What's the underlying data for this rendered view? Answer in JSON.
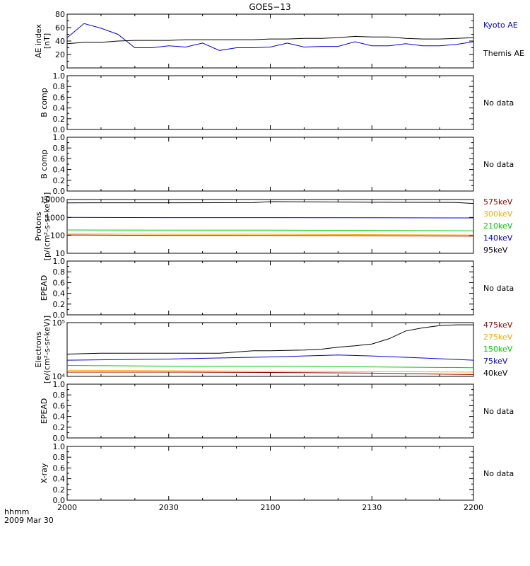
{
  "title": "GOES−13",
  "footer": {
    "time_label": "hhmm",
    "date_label": "2009 Mar 30"
  },
  "x_ticks": [
    "2000",
    "2030",
    "2100",
    "2130",
    "2200"
  ],
  "colors": {
    "black": "#000000",
    "blue": "#0000dd",
    "green": "#00cc00",
    "orange": "#ffaa00",
    "red": "#cc0000",
    "darkred": "#990000"
  },
  "chart_data": [
    {
      "type": "line",
      "ylabel_lines": [
        "AE index",
        "[nT]"
      ],
      "yscale": "linear",
      "ylim": [
        0,
        80
      ],
      "ytick_labels": [
        "0",
        "20",
        "40",
        "60",
        "80"
      ],
      "xlim": [
        "2000",
        "2200"
      ],
      "legend": [
        {
          "label": "Kyoto AE",
          "color": "#0000dd"
        },
        {
          "label": "Themis AE",
          "color": "#000000"
        }
      ],
      "series": [
        {
          "name": "Kyoto AE",
          "color": "#0000dd",
          "x": [
            "2000",
            "2005",
            "2010",
            "2015",
            "2020",
            "2025",
            "2030",
            "2035",
            "2040",
            "2045",
            "2050",
            "2055",
            "2100",
            "2105",
            "2110",
            "2115",
            "2120",
            "2125",
            "2130",
            "2135",
            "2140",
            "2145",
            "2150",
            "2155",
            "2200"
          ],
          "y": [
            45,
            66,
            59,
            50,
            30,
            30,
            33,
            31,
            37,
            26,
            30,
            30,
            31,
            37,
            31,
            32,
            32,
            39,
            33,
            33,
            36,
            33,
            33,
            35,
            39
          ]
        },
        {
          "name": "Themis AE",
          "color": "#000000",
          "x": [
            "2000",
            "2005",
            "2010",
            "2015",
            "2020",
            "2025",
            "2030",
            "2035",
            "2040",
            "2045",
            "2050",
            "2055",
            "2100",
            "2105",
            "2110",
            "2115",
            "2120",
            "2125",
            "2130",
            "2135",
            "2140",
            "2145",
            "2150",
            "2155",
            "2200"
          ],
          "y": [
            36,
            38,
            38,
            40,
            41,
            41,
            41,
            42,
            42,
            42,
            42,
            42,
            43,
            43,
            44,
            44,
            45,
            47,
            46,
            46,
            44,
            43,
            43,
            44,
            45
          ]
        }
      ]
    },
    {
      "type": "line",
      "ylabel_lines": [
        "B comp"
      ],
      "yscale": "linear",
      "ylim": [
        0,
        1
      ],
      "ytick_labels": [
        "0.0",
        "0.2",
        "0.4",
        "0.6",
        "0.8",
        "1.0"
      ],
      "no_data": "No data",
      "series": []
    },
    {
      "type": "line",
      "ylabel_lines": [
        "B comp"
      ],
      "yscale": "linear",
      "ylim": [
        0,
        1
      ],
      "ytick_labels": [
        "0.0",
        "0.2",
        "0.4",
        "0.6",
        "0.8",
        "1.0"
      ],
      "no_data": "No data",
      "series": []
    },
    {
      "type": "line",
      "ylabel_lines": [
        "Protons",
        "[p/(cm²-s-sr-keV)]"
      ],
      "yscale": "log",
      "ylim": [
        10,
        10000
      ],
      "ytick_labels": [
        "10",
        "100",
        "1000",
        "10000"
      ],
      "legend": [
        {
          "label": "575keV",
          "color": "#990000"
        },
        {
          "label": "300keV",
          "color": "#ffaa00"
        },
        {
          "label": "210keV",
          "color": "#00cc00"
        },
        {
          "label": "140keV",
          "color": "#0000dd"
        },
        {
          "label": "95keV",
          "color": "#000000"
        }
      ],
      "series": [
        {
          "name": "95keV",
          "color": "#000000",
          "x": [
            "2000",
            "2030",
            "2055",
            "2100",
            "2130",
            "2155",
            "2200"
          ],
          "y": [
            6500,
            6600,
            6700,
            7600,
            7000,
            6800,
            6000
          ]
        },
        {
          "name": "140keV",
          "color": "#0000dd",
          "x": [
            "2000",
            "2030",
            "2100",
            "2130",
            "2200"
          ],
          "y": [
            1000,
            980,
            980,
            960,
            940
          ]
        },
        {
          "name": "210keV",
          "color": "#00cc00",
          "x": [
            "2000",
            "2030",
            "2100",
            "2130",
            "2200"
          ],
          "y": [
            200,
            195,
            195,
            190,
            180
          ]
        },
        {
          "name": "300keV",
          "color": "#ffaa00",
          "x": [
            "2000",
            "2030",
            "2100",
            "2130",
            "2200"
          ],
          "y": [
            120,
            115,
            115,
            110,
            105
          ]
        },
        {
          "name": "575keV",
          "color": "#990000",
          "x": [
            "2000",
            "2030",
            "2100",
            "2130",
            "2200"
          ],
          "y": [
            105,
            100,
            98,
            95,
            90
          ]
        }
      ]
    },
    {
      "type": "line",
      "ylabel_lines": [
        "EPEAD"
      ],
      "yscale": "linear",
      "ylim": [
        0,
        1
      ],
      "ytick_labels": [
        "0.0",
        "0.2",
        "0.4",
        "0.6",
        "0.8",
        "1.0"
      ],
      "no_data": "No data",
      "series": []
    },
    {
      "type": "line",
      "ylabel_lines": [
        "Electrons",
        "[e/(cm²-s-sr-keV)]"
      ],
      "yscale": "log",
      "ylim": [
        10000,
        100000
      ],
      "ytick_labels": [
        "10⁴",
        "10⁵"
      ],
      "legend": [
        {
          "label": "475keV",
          "color": "#990000"
        },
        {
          "label": "275keV",
          "color": "#ffaa00"
        },
        {
          "label": "150keV",
          "color": "#00cc00"
        },
        {
          "label": "75keV",
          "color": "#0000dd"
        },
        {
          "label": "40keV",
          "color": "#000000"
        }
      ],
      "series": [
        {
          "name": "40keV",
          "color": "#000000",
          "x": [
            "2000",
            "2010",
            "2030",
            "2045",
            "2055",
            "2100",
            "2110",
            "2115",
            "2120",
            "2125",
            "2130",
            "2135",
            "2140",
            "2145",
            "2150",
            "2155",
            "2200"
          ],
          "y": [
            26000,
            27000,
            27000,
            27000,
            30000,
            30000,
            31000,
            32000,
            35000,
            37000,
            40000,
            50000,
            70000,
            80000,
            88000,
            91000,
            91000
          ]
        },
        {
          "name": "75keV",
          "color": "#0000dd",
          "x": [
            "2000",
            "2030",
            "2100",
            "2120",
            "2130",
            "2145",
            "2200"
          ],
          "y": [
            20000,
            21000,
            23000,
            25000,
            24000,
            22000,
            20000
          ]
        },
        {
          "name": "150keV",
          "color": "#00cc00",
          "x": [
            "2000",
            "2030",
            "2100",
            "2130",
            "2200"
          ],
          "y": [
            16000,
            15500,
            15500,
            15000,
            14500
          ]
        },
        {
          "name": "275keV",
          "color": "#ffaa00",
          "x": [
            "2000",
            "2030",
            "2100",
            "2130",
            "2200"
          ],
          "y": [
            13000,
            12800,
            12500,
            12300,
            12000
          ]
        },
        {
          "name": "475keV",
          "color": "#990000",
          "x": [
            "2000",
            "2030",
            "2100",
            "2130",
            "2200"
          ],
          "y": [
            12000,
            12000,
            11800,
            11500,
            10800
          ]
        }
      ]
    },
    {
      "type": "line",
      "ylabel_lines": [
        "EPEAD"
      ],
      "yscale": "linear",
      "ylim": [
        0,
        1
      ],
      "ytick_labels": [
        "0.0",
        "0.2",
        "0.4",
        "0.6",
        "0.8",
        "1.0"
      ],
      "no_data": "No data",
      "series": []
    },
    {
      "type": "line",
      "ylabel_lines": [
        "X-ray"
      ],
      "yscale": "linear",
      "ylim": [
        0,
        1
      ],
      "ytick_labels": [
        "0.0",
        "0.2",
        "0.4",
        "0.6",
        "0.8",
        "1.0"
      ],
      "no_data": "No data",
      "series": []
    }
  ]
}
